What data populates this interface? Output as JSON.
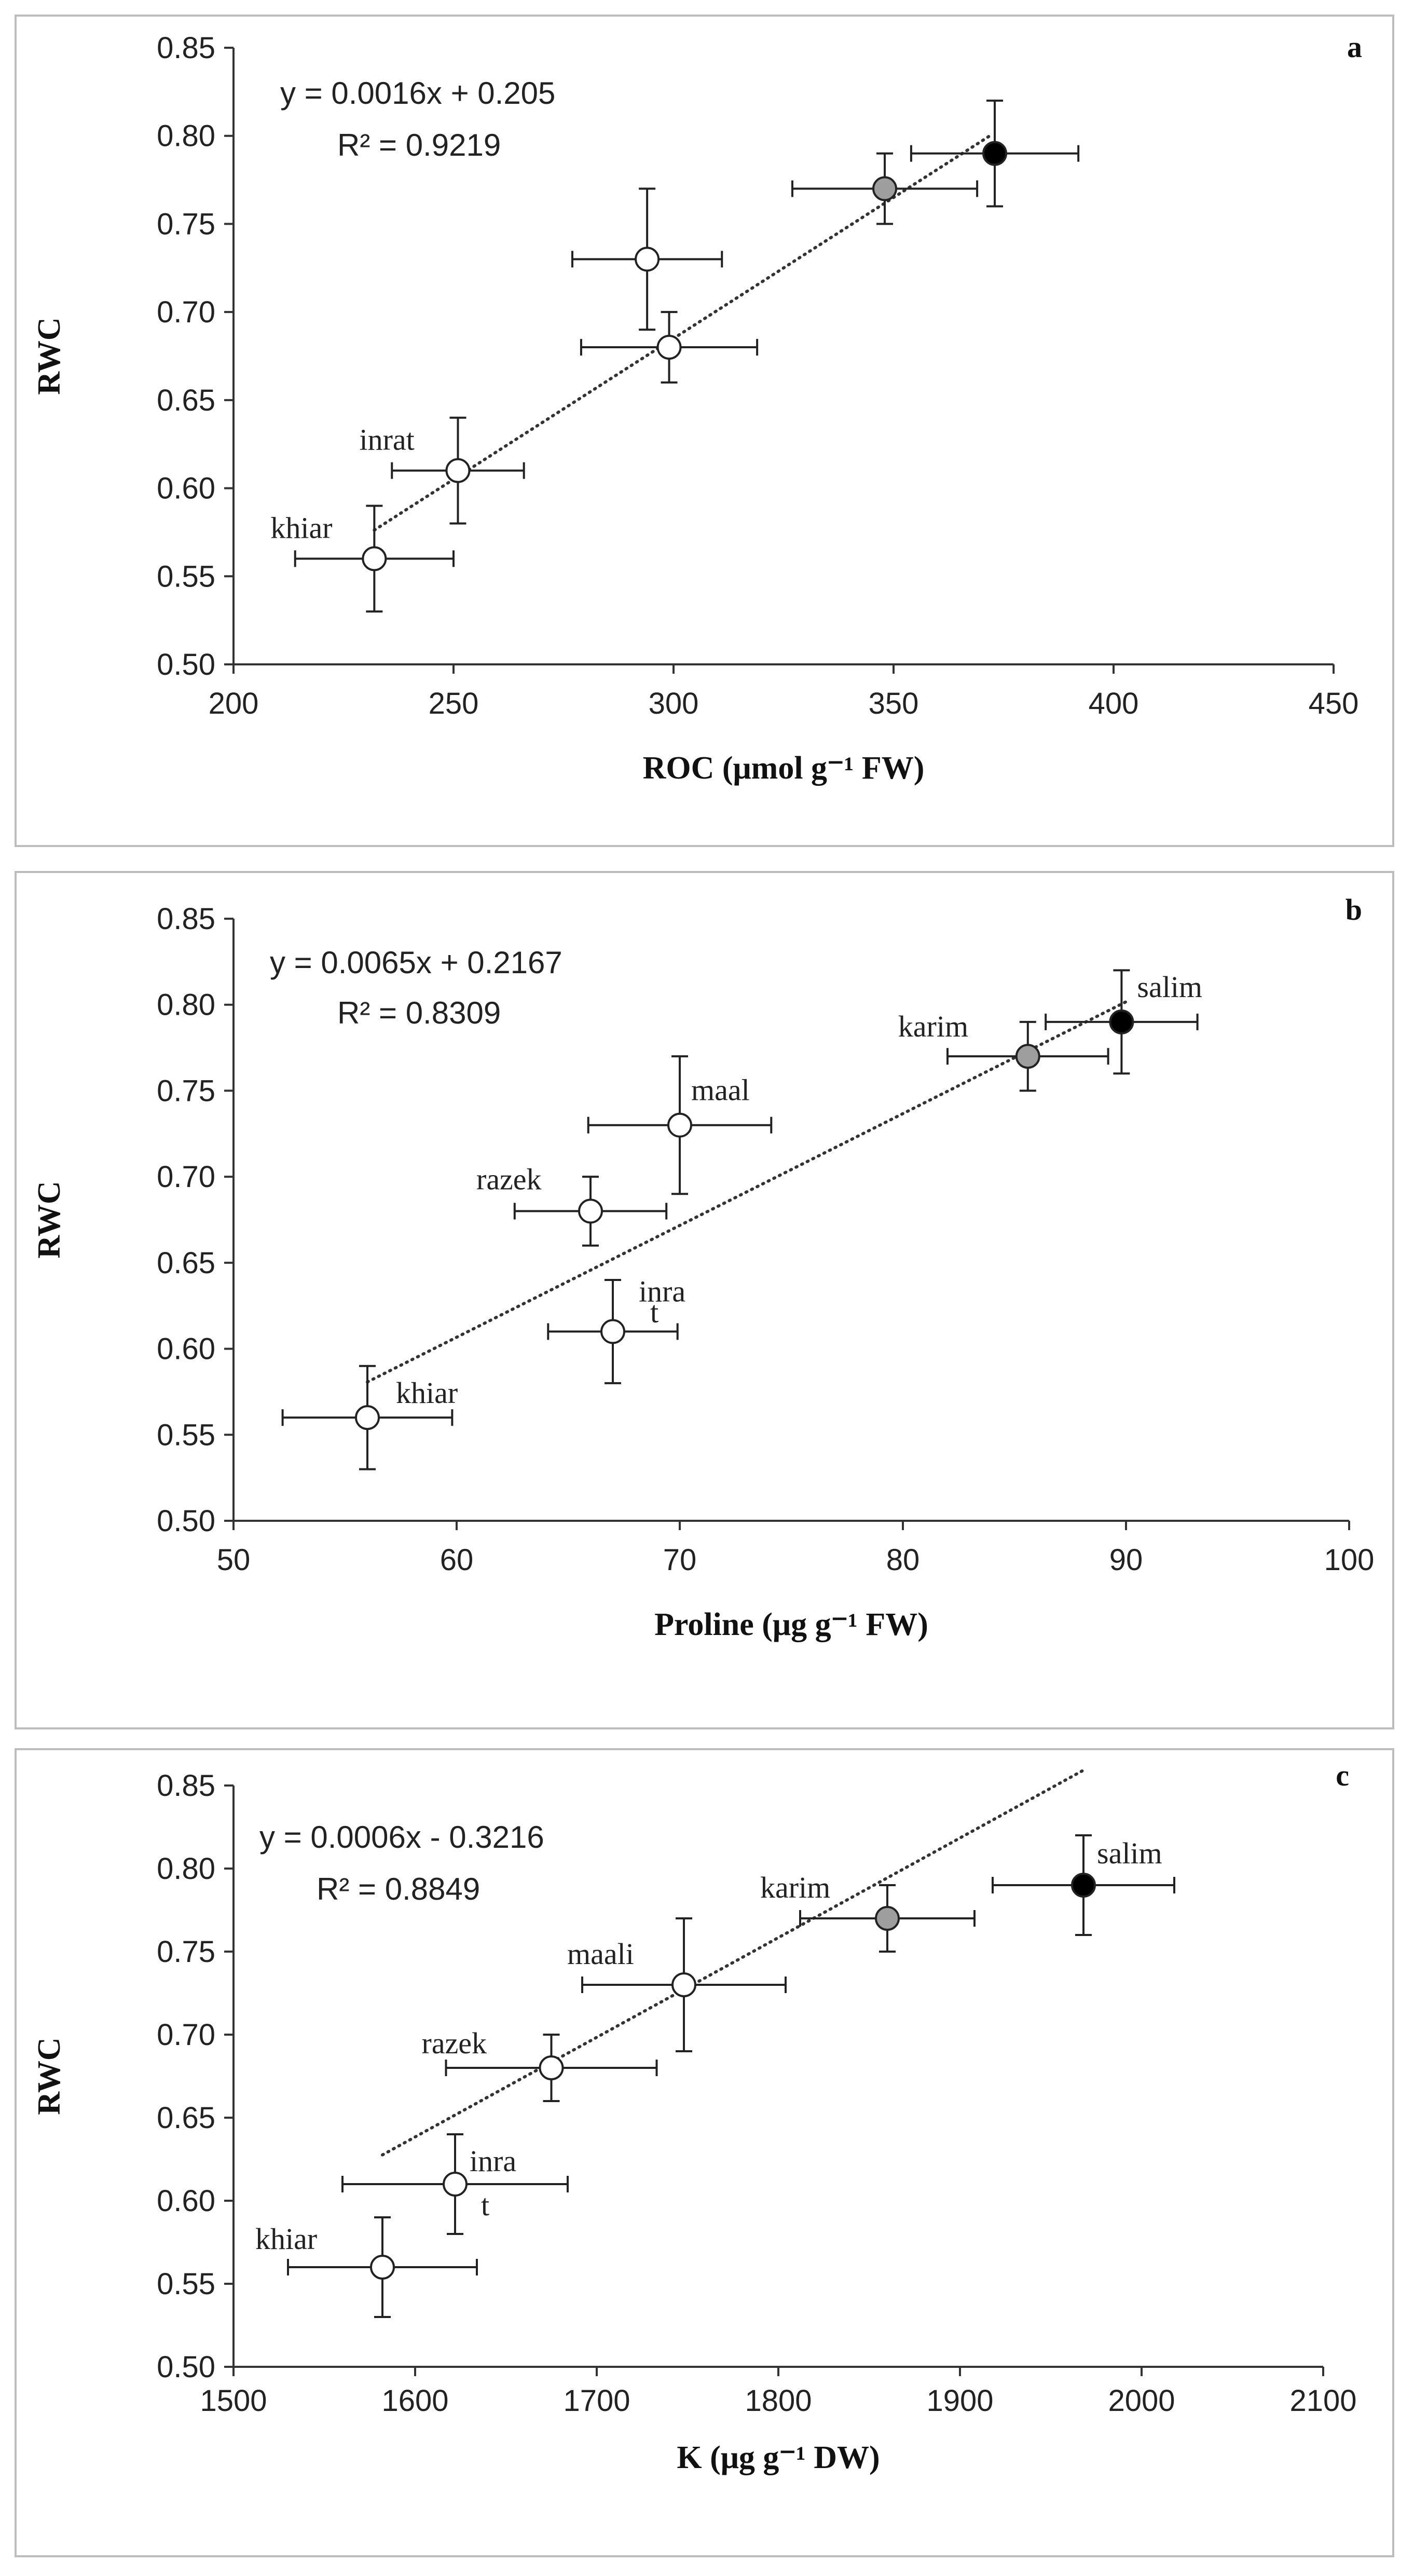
{
  "chart_data": [
    {
      "type": "scatter",
      "panel_label": "a",
      "ylabel": "RWC",
      "xlabel": "ROC (μmol g⁻¹ FW)",
      "xlim": [
        200,
        450
      ],
      "ylim": [
        0.5,
        0.85
      ],
      "x_ticks": [
        "200",
        "250",
        "300",
        "350",
        "400",
        "450"
      ],
      "y_ticks": [
        "0.50",
        "0.55",
        "0.60",
        "0.65",
        "0.70",
        "0.75",
        "0.80",
        "0.85"
      ],
      "equation": "y = 0.0016x + 0.205",
      "r_squared": "R² = 0.9219",
      "trendline": {
        "slope": 0.0016,
        "intercept": 0.205,
        "x_range": [
          232,
          372
        ]
      },
      "points": [
        {
          "x": 232,
          "y": 0.56,
          "x_err": 18,
          "y_err": 0.03,
          "fill": "#ffffff",
          "label": "khiar"
        },
        {
          "x": 251,
          "y": 0.61,
          "x_err": 15,
          "y_err": 0.03,
          "fill": "#ffffff",
          "label": "inrat"
        },
        {
          "x": 299,
          "y": 0.68,
          "x_err": 20,
          "y_err": 0.02,
          "fill": "#ffffff",
          "label": ""
        },
        {
          "x": 294,
          "y": 0.73,
          "x_err": 17,
          "y_err": 0.04,
          "fill": "#ffffff",
          "label": ""
        },
        {
          "x": 348,
          "y": 0.77,
          "x_err": 21,
          "y_err": 0.02,
          "fill": "#9e9e9e",
          "label": ""
        },
        {
          "x": 373,
          "y": 0.79,
          "x_err": 19,
          "y_err": 0.03,
          "fill": "#000000",
          "label": ""
        }
      ]
    },
    {
      "type": "scatter",
      "panel_label": "b",
      "ylabel": "RWC",
      "xlabel": "Proline (μg g⁻¹ FW)",
      "xlim": [
        50,
        100
      ],
      "ylim": [
        0.5,
        0.85
      ],
      "x_ticks": [
        "50",
        "60",
        "70",
        "80",
        "90",
        "100"
      ],
      "y_ticks": [
        "0.50",
        "0.55",
        "0.60",
        "0.65",
        "0.70",
        "0.75",
        "0.80",
        "0.85"
      ],
      "equation": "y = 0.0065x + 0.2167",
      "r_squared": "R² = 0.8309",
      "trendline": {
        "slope": 0.0065,
        "intercept": 0.2167,
        "x_range": [
          56,
          90
        ]
      },
      "points": [
        {
          "x": 56,
          "y": 0.56,
          "x_err": 3.8,
          "y_err": 0.03,
          "fill": "#ffffff",
          "label": "khiar"
        },
        {
          "x": 67,
          "y": 0.61,
          "x_err": 2.9,
          "y_err": 0.03,
          "fill": "#ffffff",
          "label": "inra\nt"
        },
        {
          "x": 66,
          "y": 0.68,
          "x_err": 3.4,
          "y_err": 0.02,
          "fill": "#ffffff",
          "label": "razek"
        },
        {
          "x": 70,
          "y": 0.73,
          "x_err": 4.1,
          "y_err": 0.04,
          "fill": "#ffffff",
          "label": "maal"
        },
        {
          "x": 85.6,
          "y": 0.77,
          "x_err": 3.6,
          "y_err": 0.02,
          "fill": "#9e9e9e",
          "label": "karim"
        },
        {
          "x": 89.8,
          "y": 0.79,
          "x_err": 3.4,
          "y_err": 0.03,
          "fill": "#000000",
          "label": "salim"
        }
      ]
    },
    {
      "type": "scatter",
      "panel_label": "c",
      "ylabel": "RWC",
      "xlabel": "K (μg g⁻¹ DW)",
      "xlim": [
        1500,
        2100
      ],
      "ylim": [
        0.5,
        0.85
      ],
      "x_ticks": [
        "1500",
        "1600",
        "1700",
        "1800",
        "1900",
        "2000",
        "2100"
      ],
      "y_ticks": [
        "0.50",
        "0.55",
        "0.60",
        "0.65",
        "0.70",
        "0.75",
        "0.80",
        "0.85"
      ],
      "equation": "y = 0.0006x - 0.3216",
      "r_squared": "R² = 0.8849",
      "trendline": {
        "slope": 0.0006,
        "intercept": -0.3216,
        "x_range": [
          1582,
          1968
        ]
      },
      "points": [
        {
          "x": 1582,
          "y": 0.56,
          "x_err": 52,
          "y_err": 0.03,
          "fill": "#ffffff",
          "label": "khiar"
        },
        {
          "x": 1622,
          "y": 0.61,
          "x_err": 62,
          "y_err": 0.03,
          "fill": "#ffffff",
          "label": "inra\nt"
        },
        {
          "x": 1675,
          "y": 0.68,
          "x_err": 58,
          "y_err": 0.02,
          "fill": "#ffffff",
          "label": "razek"
        },
        {
          "x": 1748,
          "y": 0.73,
          "x_err": 56,
          "y_err": 0.04,
          "fill": "#ffffff",
          "label": "maali"
        },
        {
          "x": 1860,
          "y": 0.77,
          "x_err": 48,
          "y_err": 0.02,
          "fill": "#9e9e9e",
          "label": "karim"
        },
        {
          "x": 1968,
          "y": 0.79,
          "x_err": 50,
          "y_err": 0.03,
          "fill": "#000000",
          "label": "salim"
        }
      ]
    }
  ]
}
